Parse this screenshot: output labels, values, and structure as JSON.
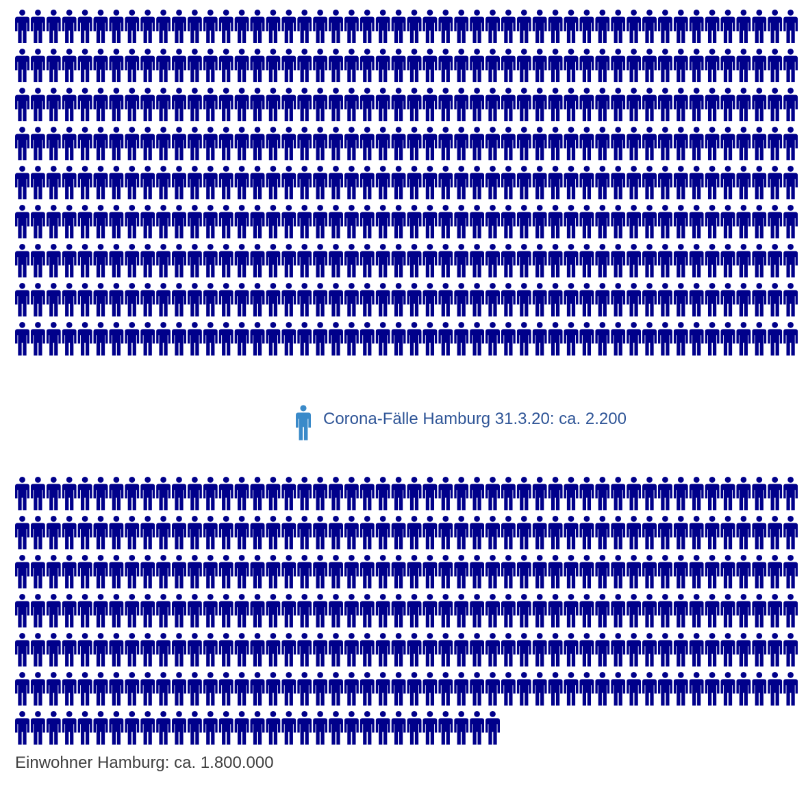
{
  "chart_data": {
    "type": "pictogram",
    "colors": {
      "population": "#00008b",
      "cases": "#3a8ac9"
    },
    "groups": [
      {
        "name": "population",
        "label": "Einwohner Hamburg: ca. 1.800.000",
        "value": 1800000,
        "icon": "person-icon",
        "rows_full": 15,
        "last_row_icons": 31,
        "icons_per_row": 50
      },
      {
        "name": "cases",
        "label": "Corona-Fälle Hamburg 31.3.20: ca. 2.200",
        "value": 2200,
        "icon": "person-icon",
        "icon_count": 1
      }
    ]
  }
}
